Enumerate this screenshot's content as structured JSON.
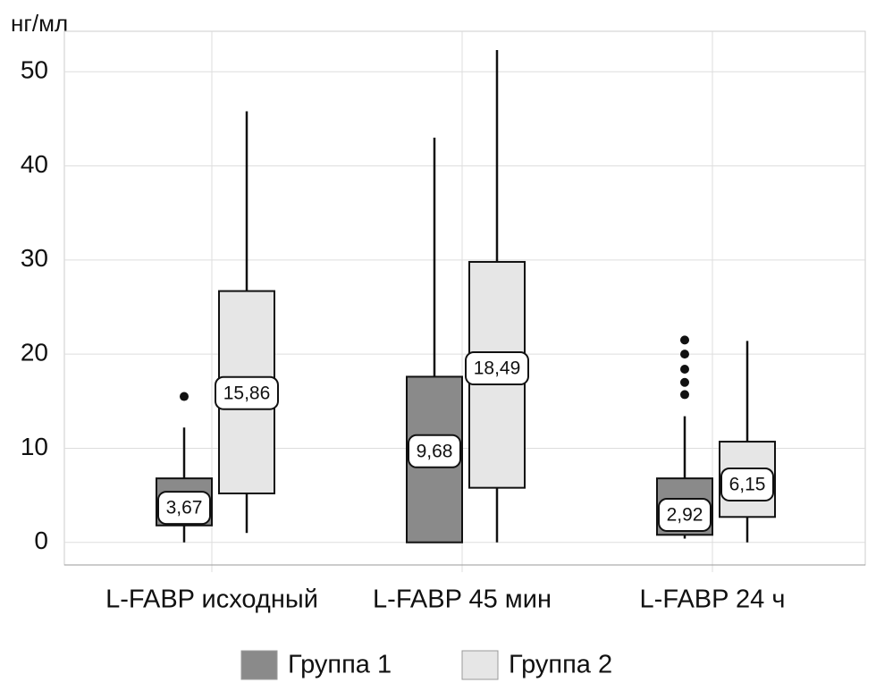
{
  "chart_data": {
    "type": "box",
    "y_label": "нг/мл",
    "categories": [
      "L-FABP исходный",
      "L-FABP 45 мин",
      "L-FABP 24 ч"
    ],
    "ylim": [
      -2.4,
      54.3
    ],
    "yticks": [
      0,
      10,
      20,
      30,
      40,
      50
    ],
    "grid": true,
    "legend": "bottom",
    "series": [
      {
        "name": "Группа 1",
        "color": "#8a8a8a",
        "min": [
          0,
          0,
          0.4
        ],
        "q1": [
          1.8,
          0,
          0.8
        ],
        "median": [
          3.67,
          9.68,
          2.92
        ],
        "q3": [
          6.8,
          17.6,
          6.8
        ],
        "max": [
          12.2,
          43,
          13.4
        ],
        "outliers": [
          [
            15.5
          ],
          [],
          [
            21.5,
            20.0,
            18.4,
            17.0,
            15.7
          ]
        ],
        "value_labels": [
          "3,67",
          "9,68",
          "2,92"
        ]
      },
      {
        "name": "Группа 2",
        "color": "#e6e6e6",
        "min": [
          1.0,
          0,
          0
        ],
        "q1": [
          5.2,
          5.8,
          2.7
        ],
        "median": [
          15.86,
          18.49,
          6.15
        ],
        "q3": [
          26.7,
          29.8,
          10.7
        ],
        "max": [
          45.8,
          52.3,
          21.4
        ],
        "outliers": [
          [],
          [],
          []
        ],
        "value_labels": [
          "15,86",
          "18,49",
          "6,15"
        ]
      }
    ]
  }
}
